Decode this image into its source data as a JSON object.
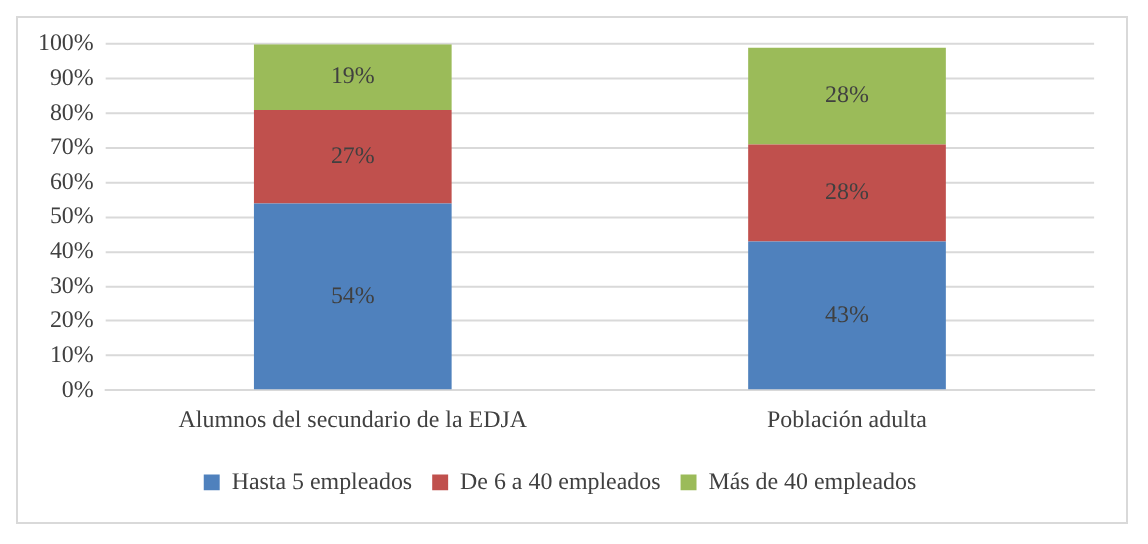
{
  "chart_data": {
    "type": "bar",
    "stacked": true,
    "categories": [
      "Alumnos del secundario de la EDJA",
      "Población adulta"
    ],
    "series": [
      {
        "name": "Hasta 5 empleados",
        "color": "#4f81bd",
        "values": [
          54,
          43
        ],
        "value_labels": [
          "54%",
          "43%"
        ]
      },
      {
        "name": "De 6 a 40 empleados",
        "color": "#c0504d",
        "values": [
          27,
          28
        ],
        "value_labels": [
          "27%",
          "28%"
        ]
      },
      {
        "name": "Más de 40 empleados",
        "color": "#9bbb59",
        "values": [
          19,
          28
        ],
        "value_labels": [
          "19%",
          "28%"
        ]
      }
    ],
    "ylim": [
      0,
      100
    ],
    "yticks": [
      {
        "value": 0,
        "label": "0%"
      },
      {
        "value": 10,
        "label": "10%"
      },
      {
        "value": 20,
        "label": "20%"
      },
      {
        "value": 30,
        "label": "30%"
      },
      {
        "value": 40,
        "label": "40%"
      },
      {
        "value": 50,
        "label": "50%"
      },
      {
        "value": 60,
        "label": "60%"
      },
      {
        "value": 70,
        "label": "70%"
      },
      {
        "value": 80,
        "label": "80%"
      },
      {
        "value": 90,
        "label": "90%"
      },
      {
        "value": 100,
        "label": "100%"
      }
    ],
    "grid": "y",
    "legend": "bottom"
  }
}
